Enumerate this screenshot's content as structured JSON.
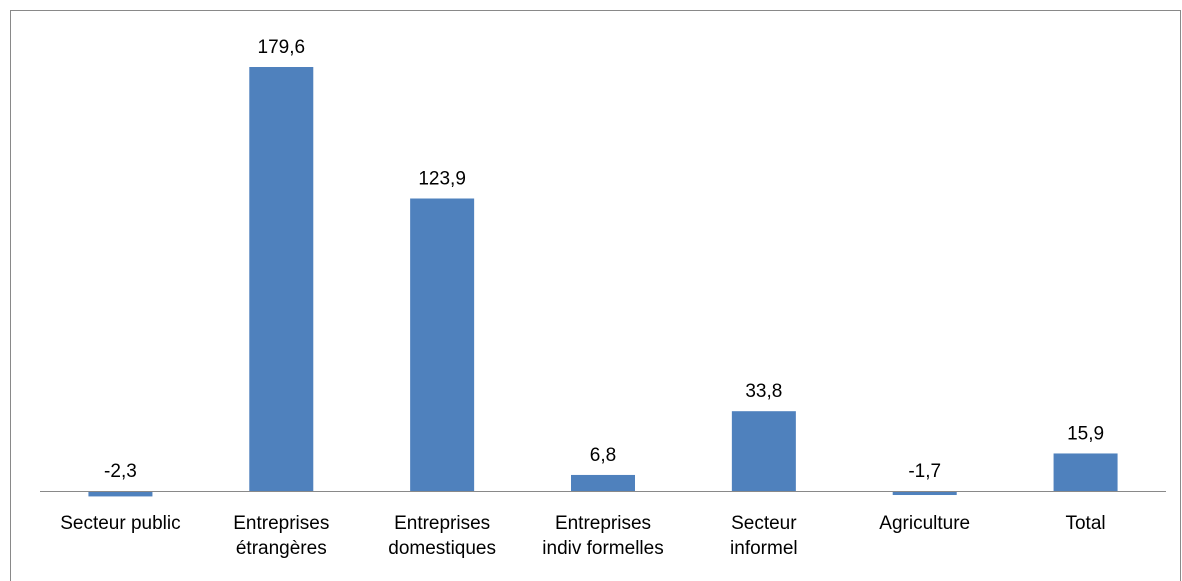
{
  "chart_data": {
    "type": "bar",
    "categories": [
      "Secteur public",
      "Entreprises\nétrangères",
      "Entreprises\ndomestiques",
      "Entreprises\nindiv formelles",
      "Secteur\ninformel",
      "Agriculture",
      "Total"
    ],
    "values": [
      -2.3,
      179.6,
      123.9,
      6.8,
      33.8,
      -1.7,
      15.9
    ],
    "value_labels": [
      "-2,3",
      "179,6",
      "123,9",
      "6,8",
      "33,8",
      "-1,7",
      "15,9"
    ],
    "color": "#4f81bd"
  }
}
